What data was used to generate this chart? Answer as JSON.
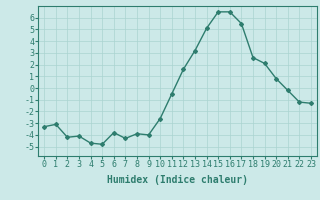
{
  "x": [
    0,
    1,
    2,
    3,
    4,
    5,
    6,
    7,
    8,
    9,
    10,
    11,
    12,
    13,
    14,
    15,
    16,
    17,
    18,
    19,
    20,
    21,
    22,
    23
  ],
  "y": [
    -3.3,
    -3.1,
    -4.2,
    -4.1,
    -4.7,
    -4.8,
    -3.8,
    -4.3,
    -3.9,
    -4.0,
    -2.6,
    -0.5,
    1.6,
    3.2,
    5.1,
    6.5,
    6.5,
    5.5,
    2.6,
    2.1,
    0.8,
    -0.2,
    -1.2,
    -1.3
  ],
  "line_color": "#2e7d6e",
  "marker": "D",
  "marker_size": 2,
  "bg_color": "#cce9e8",
  "grid_color": "#aad4d0",
  "xlabel": "Humidex (Indice chaleur)",
  "ylim": [
    -5.8,
    7.0
  ],
  "xlim": [
    -0.5,
    23.5
  ],
  "yticks": [
    -5,
    -4,
    -3,
    -2,
    -1,
    0,
    1,
    2,
    3,
    4,
    5,
    6
  ],
  "xticks": [
    0,
    1,
    2,
    3,
    4,
    5,
    6,
    7,
    8,
    9,
    10,
    11,
    12,
    13,
    14,
    15,
    16,
    17,
    18,
    19,
    20,
    21,
    22,
    23
  ],
  "xlabel_fontsize": 7,
  "tick_fontsize": 6,
  "line_width": 1.0
}
